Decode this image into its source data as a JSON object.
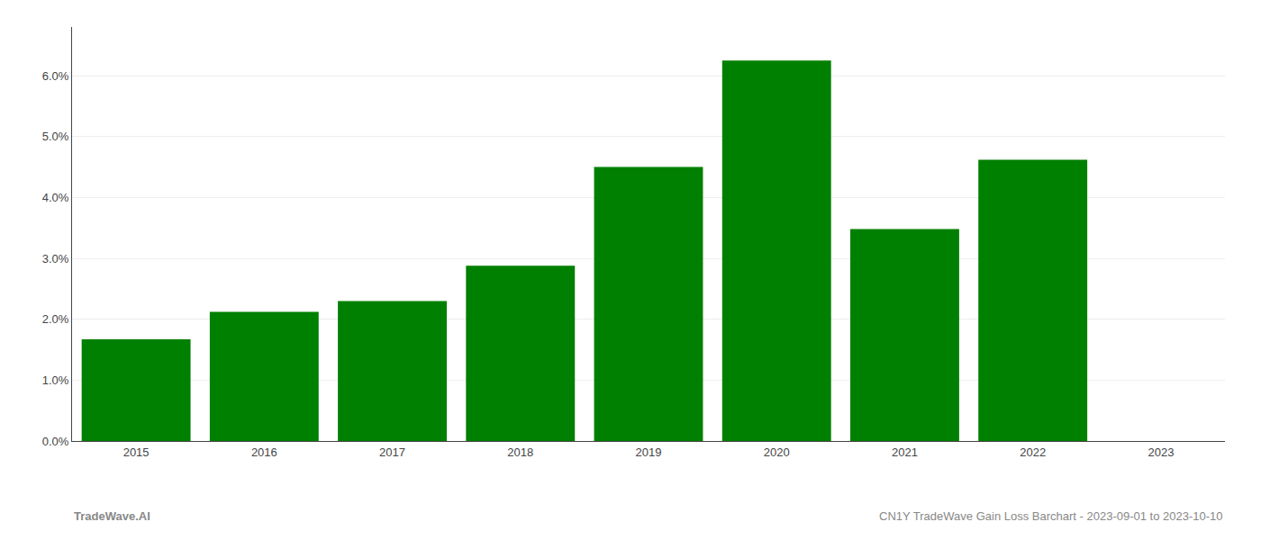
{
  "chart_data": {
    "type": "bar",
    "categories": [
      "2015",
      "2016",
      "2017",
      "2018",
      "2019",
      "2020",
      "2021",
      "2022",
      "2023"
    ],
    "values": [
      0.0167,
      0.0212,
      0.023,
      0.0288,
      0.045,
      0.0625,
      0.0348,
      0.0462,
      null
    ],
    "color": "#008000",
    "ylim": [
      0,
      0.068
    ],
    "yticks": [
      {
        "value": 0.0,
        "label": "0.0%"
      },
      {
        "value": 0.01,
        "label": "1.0%"
      },
      {
        "value": 0.02,
        "label": "2.0%"
      },
      {
        "value": 0.03,
        "label": "3.0%"
      },
      {
        "value": 0.04,
        "label": "4.0%"
      },
      {
        "value": 0.05,
        "label": "5.0%"
      },
      {
        "value": 0.06,
        "label": "6.0%"
      }
    ],
    "grid": true,
    "annotations": [
      "TradeWave.AI",
      "CN1Y TradeWave Gain Loss Barchart - 2023-09-01 to 2023-10-10"
    ]
  }
}
